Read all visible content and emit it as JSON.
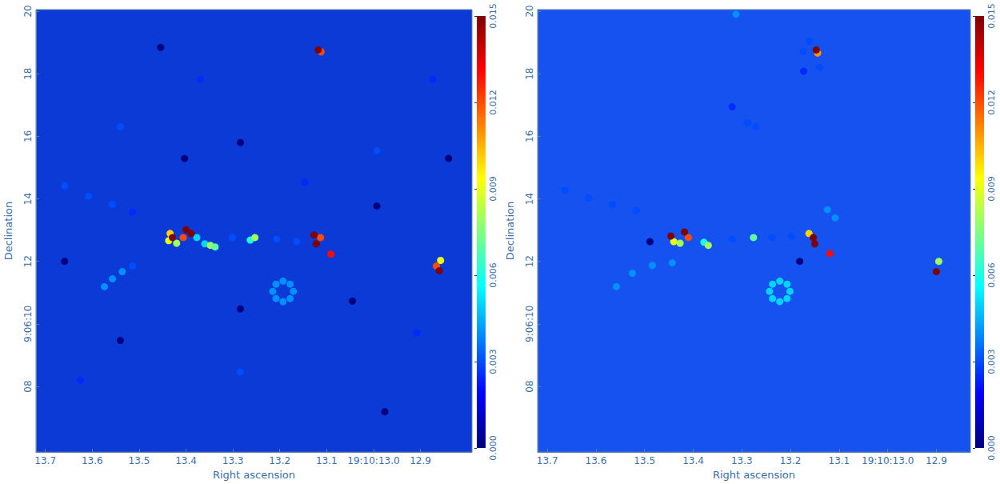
{
  "chart_data": [
    {
      "type": "heatmap",
      "xlabel": "Right ascension",
      "ylabel": "Declination",
      "xlim": [
        13.72,
        12.79
      ],
      "ylim": [
        5.9,
        20.05
      ],
      "xticks": [
        13.7,
        13.6,
        13.5,
        13.4,
        13.3,
        13.2,
        13.1,
        {
          "value": 13.0,
          "label": "19:10:13.0"
        },
        12.9
      ],
      "yticks": [
        {
          "value": 8,
          "label": "08"
        },
        {
          "value": 10,
          "label": "9:06:10"
        },
        12,
        14,
        16,
        18,
        20
      ],
      "colorbar": {
        "range": [
          0,
          0.015
        ],
        "ticks": [
          {
            "value": 0,
            "label": "0.000"
          },
          {
            "value": 0.003,
            "label": "0.003"
          },
          {
            "value": 0.006,
            "label": "0.006"
          },
          {
            "value": 0.009,
            "label": "0.009"
          },
          {
            "value": 0.012,
            "label": "0.012"
          },
          {
            "value": 0.015,
            "label": "0.015"
          }
        ]
      },
      "cells": [
        [
          13.284,
          15.8,
          0
        ],
        [
          13.045,
          10.73,
          0
        ],
        [
          13.54,
          9.47,
          0
        ],
        [
          12.993,
          13.77,
          0
        ],
        [
          13.403,
          15.29,
          0
        ],
        [
          13.284,
          10.48,
          0
        ],
        [
          12.976,
          7.19,
          0
        ],
        [
          13.454,
          18.84,
          0
        ],
        [
          12.84,
          15.29,
          0
        ],
        [
          13.659,
          12.0,
          0
        ],
        [
          13.54,
          16.3,
          0.003
        ],
        [
          12.993,
          15.54,
          0.003
        ],
        [
          13.284,
          8.46,
          0.003
        ],
        [
          12.908,
          9.72,
          0.0025
        ],
        [
          13.625,
          8.2,
          0.0025
        ],
        [
          13.147,
          14.53,
          0.0025
        ],
        [
          13.369,
          17.82,
          0.0025
        ],
        [
          12.874,
          17.82,
          0.0025
        ],
        [
          13.659,
          14.41,
          0.003
        ],
        [
          13.608,
          14.08,
          0.003
        ],
        [
          13.557,
          13.82,
          0.003
        ],
        [
          13.514,
          13.57,
          0.0025
        ],
        [
          13.574,
          11.19,
          0.004
        ],
        [
          13.557,
          11.44,
          0.004
        ],
        [
          13.536,
          11.67,
          0.004
        ],
        [
          13.514,
          11.85,
          0.003
        ],
        [
          13.171,
          11.04,
          0.004
        ],
        [
          13.215,
          11.04,
          0.004
        ],
        [
          13.193,
          11.37,
          0.004
        ],
        [
          13.193,
          10.71,
          0.004
        ],
        [
          13.178,
          11.27,
          0.004
        ],
        [
          13.208,
          11.27,
          0.004
        ],
        [
          13.178,
          10.81,
          0.004
        ],
        [
          13.208,
          10.81,
          0.004
        ],
        [
          13.301,
          12.76,
          0.003
        ],
        [
          13.207,
          12.71,
          0.003
        ],
        [
          13.164,
          12.63,
          0.003
        ],
        [
          13.377,
          12.76,
          0.005
        ],
        [
          13.36,
          12.56,
          0.005
        ],
        [
          13.348,
          12.51,
          0.008
        ],
        [
          13.338,
          12.46,
          0.007
        ],
        [
          13.263,
          12.68,
          0.006
        ],
        [
          13.253,
          12.76,
          0.008
        ],
        [
          13.42,
          12.58,
          0.008
        ],
        [
          13.437,
          12.66,
          0.009
        ],
        [
          13.434,
          12.89,
          0.01
        ],
        [
          13.406,
          12.76,
          0.012
        ],
        [
          13.429,
          12.76,
          0.015
        ],
        [
          13.4,
          13.01,
          0.015
        ],
        [
          13.389,
          12.89,
          0.015
        ],
        [
          13.113,
          12.76,
          0.012
        ],
        [
          13.127,
          12.84,
          0.015
        ],
        [
          13.122,
          12.56,
          0.015
        ],
        [
          13.091,
          12.23,
          0.013
        ],
        [
          12.857,
          12.03,
          0.009
        ],
        [
          12.866,
          11.85,
          0.012
        ],
        [
          12.86,
          11.7,
          0.015
        ],
        [
          13.112,
          18.7,
          0.012
        ],
        [
          13.118,
          18.76,
          0.015
        ]
      ]
    },
    {
      "type": "heatmap",
      "xlabel": "Right ascension",
      "ylabel": "Declination",
      "xlim": [
        13.72,
        12.83
      ],
      "ylim": [
        5.9,
        20.05
      ],
      "xticks": [
        13.7,
        13.6,
        13.5,
        13.4,
        13.3,
        13.2,
        13.1,
        {
          "value": 13.0,
          "label": "19:10:13.0"
        },
        12.9
      ],
      "yticks": [
        {
          "value": 8,
          "label": "08"
        },
        {
          "value": 10,
          "label": "9:06:10"
        },
        12,
        14,
        16,
        18,
        20
      ],
      "colorbar": {
        "range": [
          0,
          0.015
        ],
        "ticks": [
          {
            "value": 0,
            "label": "0.000"
          },
          {
            "value": 0.003,
            "label": "0.003"
          },
          {
            "value": 0.006,
            "label": "0.006"
          },
          {
            "value": 0.009,
            "label": "0.009"
          },
          {
            "value": 0.012,
            "label": "0.012"
          },
          {
            "value": 0.015,
            "label": "0.015"
          }
        ]
      },
      "cells": [
        [
          13.489,
          12.63,
          0
        ],
        [
          13.181,
          12.0,
          0
        ],
        [
          13.174,
          18.71,
          0.003
        ],
        [
          13.161,
          19.04,
          0.003
        ],
        [
          13.14,
          18.2,
          0.003
        ],
        [
          13.173,
          18.08,
          0.0025
        ],
        [
          13.312,
          19.9,
          0.004
        ],
        [
          13.288,
          16.43,
          0.003
        ],
        [
          13.271,
          16.3,
          0.003
        ],
        [
          13.32,
          16.94,
          0.0025
        ],
        [
          13.124,
          13.65,
          0.004
        ],
        [
          13.108,
          13.39,
          0.004
        ],
        [
          13.664,
          14.28,
          0.003
        ],
        [
          13.615,
          14.03,
          0.003
        ],
        [
          13.566,
          13.82,
          0.003
        ],
        [
          13.517,
          13.62,
          0.003
        ],
        [
          13.558,
          11.19,
          0.004
        ],
        [
          13.525,
          11.62,
          0.004
        ],
        [
          13.484,
          11.87,
          0.004
        ],
        [
          13.443,
          11.95,
          0.004
        ],
        [
          13.243,
          11.04,
          0.005
        ],
        [
          13.201,
          11.04,
          0.005
        ],
        [
          13.222,
          11.37,
          0.005
        ],
        [
          13.222,
          10.71,
          0.005
        ],
        [
          13.237,
          11.27,
          0.005
        ],
        [
          13.207,
          11.27,
          0.005
        ],
        [
          13.237,
          10.81,
          0.005
        ],
        [
          13.207,
          10.81,
          0.005
        ],
        [
          13.32,
          12.71,
          0.003
        ],
        [
          13.238,
          12.76,
          0.003
        ],
        [
          13.198,
          12.81,
          0.003
        ],
        [
          13.378,
          12.61,
          0.006
        ],
        [
          13.369,
          12.51,
          0.008
        ],
        [
          13.276,
          12.76,
          0.007
        ],
        [
          13.427,
          12.58,
          0.008
        ],
        [
          13.44,
          12.63,
          0.009
        ],
        [
          13.41,
          12.76,
          0.012
        ],
        [
          13.446,
          12.81,
          0.015
        ],
        [
          13.418,
          12.94,
          0.015
        ],
        [
          13.162,
          12.89,
          0.01
        ],
        [
          13.153,
          12.76,
          0.015
        ],
        [
          13.15,
          12.56,
          0.015
        ],
        [
          13.119,
          12.25,
          0.013
        ],
        [
          12.895,
          12.0,
          0.008
        ],
        [
          12.9,
          11.67,
          0.015
        ],
        [
          13.144,
          18.66,
          0.011
        ],
        [
          13.147,
          18.76,
          0.015
        ]
      ]
    }
  ]
}
